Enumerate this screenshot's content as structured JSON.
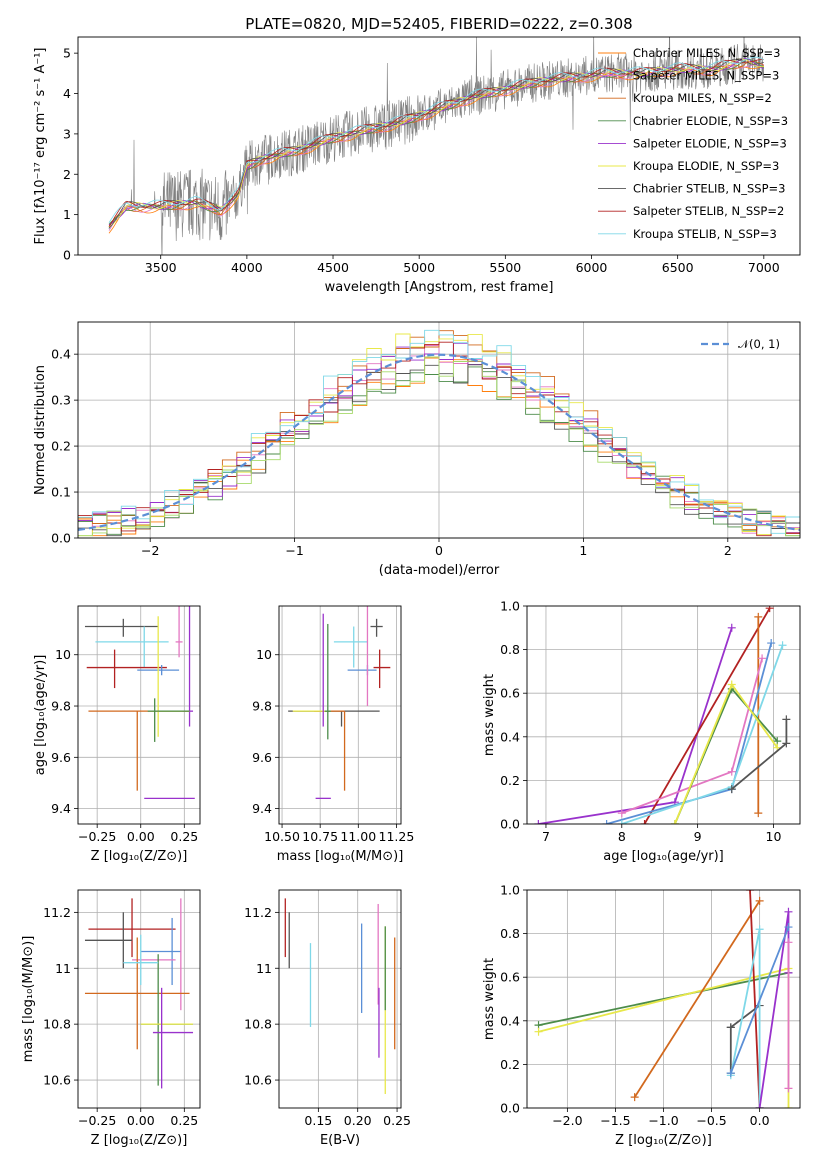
{
  "chart_data": [
    {
      "id": "spectrum",
      "type": "line",
      "title": "PLATE=0820, MJD=52405, FIBERID=0222, z=0.308",
      "xlabel": "wavelength [Angstrom, rest frame]",
      "ylabel": "Flux [fλ10⁻¹⁷ erg cm⁻² s⁻¹ A⁻¹]",
      "xlim": [
        3020,
        7210
      ],
      "ylim": [
        0,
        5.4
      ],
      "xticks": [
        3500,
        4000,
        4500,
        5000,
        5500,
        6000,
        6500,
        7000
      ],
      "yticks": [
        0,
        1,
        2,
        3,
        4,
        5
      ],
      "grid": false,
      "legend_position": "upper-right",
      "data_color": "#808080",
      "continuum": {
        "x": [
          3200,
          3300,
          3500,
          3700,
          3850,
          3950,
          4000,
          4100,
          4300,
          4500,
          4700,
          4900,
          5100,
          5300,
          5500,
          5700,
          5900,
          6100,
          6300,
          6500,
          6700,
          6900,
          7000
        ],
        "y": [
          0.7,
          1.2,
          1.2,
          1.3,
          1.1,
          1.5,
          2.2,
          2.4,
          2.6,
          2.9,
          3.1,
          3.3,
          3.6,
          3.9,
          4.1,
          4.3,
          4.4,
          4.5,
          4.5,
          4.6,
          4.6,
          4.8,
          4.7
        ]
      },
      "series": [
        {
          "name": "Chabrier MILES, N_SSP=3",
          "color": "#ff7f0e"
        },
        {
          "name": "Salpeter MILES, N_SSP=3",
          "color": "#e377c2"
        },
        {
          "name": "Kroupa MILES, N_SSP=2",
          "color": "#d2691e"
        },
        {
          "name": "Chabrier ELODIE, N_SSP=3",
          "color": "#4c8c4a"
        },
        {
          "name": "Salpeter ELODIE, N_SSP=3",
          "color": "#9932cc"
        },
        {
          "name": "Kroupa ELODIE, N_SSP=3",
          "color": "#e8e84a"
        },
        {
          "name": "Chabrier STELIB, N_SSP=3",
          "color": "#555555"
        },
        {
          "name": "Salpeter STELIB, N_SSP=2",
          "color": "#b22222"
        },
        {
          "name": "Kroupa STELIB, N_SSP=3",
          "color": "#7fd8e8"
        }
      ]
    },
    {
      "id": "residuals",
      "type": "histogram",
      "xlabel": "(data-model)/error",
      "ylabel": "Normed distribution",
      "xlim": [
        -2.5,
        2.5
      ],
      "ylim": [
        0,
        0.47
      ],
      "xticks": [
        -2,
        -1,
        0,
        1,
        2
      ],
      "yticks": [
        0.0,
        0.1,
        0.2,
        0.3,
        0.4
      ],
      "grid": true,
      "legend": "𝒩(0, 1)",
      "legend_position": "upper-right",
      "gaussian": {
        "mean": 0,
        "sigma": 1,
        "color": "#5b8fd6"
      },
      "bin_width": 0.1,
      "series_colors": [
        "#ff7f0e",
        "#e377c2",
        "#d2691e",
        "#4c8c4a",
        "#9932cc",
        "#e8e84a",
        "#555555",
        "#b22222",
        "#7fd8e8",
        "#a6d96a"
      ]
    },
    {
      "id": "age-vs-Z",
      "type": "errorbar",
      "xlabel": "Z [log₁₀(Z/Z⊙)]",
      "ylabel": "age  [log₁₀(age/yr)]",
      "xlim": [
        -0.36,
        0.34
      ],
      "ylim": [
        9.34,
        10.19
      ],
      "xticks": [
        -0.25,
        0.0,
        0.25
      ],
      "xticklabels": [
        "−0.25",
        "0.00",
        "0.25"
      ],
      "yticks": [
        9.4,
        9.6,
        9.8,
        10.0
      ],
      "grid": true,
      "points": [
        {
          "x": -0.1,
          "y": 10.11,
          "xerr": [
            0.22,
            0.2
          ],
          "yerr": [
            0.04,
            0.03
          ],
          "color": "#555555"
        },
        {
          "x": 0.02,
          "y": 10.05,
          "xerr": [
            0.28,
            0.14
          ],
          "yerr": [
            0.1,
            0.06
          ],
          "color": "#7fd8e8"
        },
        {
          "x": -0.15,
          "y": 9.95,
          "xerr": [
            0.16,
            0.3
          ],
          "yerr": [
            0.08,
            0.07
          ],
          "color": "#b22222"
        },
        {
          "x": 0.12,
          "y": 9.94,
          "xerr": [
            0.14,
            0.1
          ],
          "yerr": [
            0.02,
            0.02
          ],
          "color": "#5b8fd6"
        },
        {
          "x": 0.28,
          "y": 9.78,
          "xerr": [
            0.04,
            0.02
          ],
          "yerr": [
            0.06,
            0.42
          ],
          "color": "#9932cc"
        },
        {
          "x": -0.02,
          "y": 9.78,
          "xerr": [
            0.28,
            0.3
          ],
          "yerr": [
            0.31,
            0.0
          ],
          "color": "#d2691e"
        },
        {
          "x": 0.1,
          "y": 9.78,
          "xerr": [
            0.05,
            0.18
          ],
          "yerr": [
            0.1,
            0.37
          ],
          "color": "#e8e84a"
        },
        {
          "x": 0.08,
          "y": 9.78,
          "xerr": [
            0.04,
            0.2
          ],
          "yerr": [
            0.12,
            0.05
          ],
          "color": "#4c8c4a"
        },
        {
          "x": 0.22,
          "y": 10.05,
          "xerr": [
            0.02,
            0.02
          ],
          "yerr": [
            0.06,
            0.43
          ],
          "color": "#e377c2"
        },
        {
          "x": 0.08,
          "y": 9.44,
          "xerr": [
            0.06,
            0.23
          ],
          "yerr": [
            0.0,
            0.0
          ],
          "color": "#9932cc"
        }
      ]
    },
    {
      "id": "age-vs-mass",
      "type": "errorbar",
      "xlabel": "mass [log₁₀(M/M⊙)]",
      "ylabel": "",
      "xlim": [
        10.48,
        11.28
      ],
      "ylim": [
        9.34,
        10.19
      ],
      "xticks": [
        10.5,
        10.75,
        11.0,
        11.25
      ],
      "xticklabels": [
        "10.50",
        "10.75",
        "11.00",
        "11.25"
      ],
      "yticks": [
        9.4,
        9.6,
        9.8,
        10.0
      ],
      "grid": true,
      "points": [
        {
          "x": 11.12,
          "y": 10.11,
          "xerr": [
            0.04,
            0.04
          ],
          "yerr": [
            0.04,
            0.03
          ],
          "color": "#555555"
        },
        {
          "x": 10.97,
          "y": 10.05,
          "xerr": [
            0.13,
            0.09
          ],
          "yerr": [
            0.1,
            0.06
          ],
          "color": "#7fd8e8"
        },
        {
          "x": 11.14,
          "y": 9.95,
          "xerr": [
            0.04,
            0.07
          ],
          "yerr": [
            0.08,
            0.07
          ],
          "color": "#b22222"
        },
        {
          "x": 11.06,
          "y": 9.94,
          "xerr": [
            0.13,
            0.06
          ],
          "yerr": [
            0.02,
            0.02
          ],
          "color": "#5b8fd6"
        },
        {
          "x": 10.89,
          "y": 9.78,
          "xerr": [
            0.35,
            0.25
          ],
          "yerr": [
            0.06,
            0.0
          ],
          "color": "#555555"
        },
        {
          "x": 10.91,
          "y": 9.78,
          "xerr": [
            0.2,
            0.0
          ],
          "yerr": [
            0.31,
            0.0
          ],
          "color": "#d2691e"
        },
        {
          "x": 10.82,
          "y": 9.78,
          "xerr": [
            0.25,
            0.0
          ],
          "yerr": [
            0.0,
            0.0
          ],
          "color": "#e8e84a"
        },
        {
          "x": 10.8,
          "y": 9.78,
          "xerr": [
            0.02,
            0.02
          ],
          "yerr": [
            0.11,
            0.34
          ],
          "color": "#4c8c4a"
        },
        {
          "x": 10.77,
          "y": 9.78,
          "xerr": [
            0.0,
            0.0
          ],
          "yerr": [
            0.06,
            0.38
          ],
          "color": "#9932cc"
        },
        {
          "x": 11.06,
          "y": 9.94,
          "xerr": [
            0.0,
            0.0
          ],
          "yerr": [
            0.14,
            0.26
          ],
          "color": "#e377c2"
        },
        {
          "x": 10.77,
          "y": 9.44,
          "xerr": [
            0.05,
            0.05
          ],
          "yerr": [
            0.0,
            0.0
          ],
          "color": "#9932cc"
        }
      ]
    },
    {
      "id": "mass-weight-vs-age",
      "type": "line",
      "xlabel": "age  [log₁₀(age/yr)]",
      "ylabel": "mass weight",
      "xlim": [
        6.75,
        10.35
      ],
      "ylim": [
        0,
        1
      ],
      "xticks": [
        7,
        8,
        9,
        10
      ],
      "yticks": [
        0.0,
        0.2,
        0.4,
        0.6,
        0.8,
        1.0
      ],
      "grid": true,
      "series": [
        {
          "color": "#9932cc",
          "x": [
            6.9,
            8.7,
            9.45
          ],
          "y": [
            0.0,
            0.1,
            0.9
          ]
        },
        {
          "color": "#b22222",
          "x": [
            8.3,
            9.95
          ],
          "y": [
            0.0,
            0.99
          ]
        },
        {
          "color": "#d2691e",
          "x": [
            9.8,
            9.8
          ],
          "y": [
            0.95,
            0.05
          ]
        },
        {
          "color": "#e377c2",
          "x": [
            8.0,
            9.45,
            9.85
          ],
          "y": [
            0.05,
            0.24,
            0.76
          ]
        },
        {
          "color": "#5b8fd6",
          "x": [
            7.8,
            9.45,
            9.97
          ],
          "y": [
            0.0,
            0.16,
            0.83
          ]
        },
        {
          "color": "#7fd8e8",
          "x": [
            8.0,
            9.45,
            10.12
          ],
          "y": [
            0.0,
            0.17,
            0.82
          ]
        },
        {
          "color": "#4c8c4a",
          "x": [
            8.7,
            9.45,
            10.05
          ],
          "y": [
            0.0,
            0.62,
            0.38
          ]
        },
        {
          "color": "#e8e84a",
          "x": [
            8.7,
            9.45,
            10.05
          ],
          "y": [
            0.0,
            0.64,
            0.35
          ]
        },
        {
          "color": "#555555",
          "x": [
            9.45,
            10.17,
            10.17
          ],
          "y": [
            0.16,
            0.37,
            0.48
          ]
        }
      ]
    },
    {
      "id": "mass-vs-Z",
      "type": "errorbar",
      "xlabel": "Z [log₁₀(Z/Z⊙)]",
      "ylabel": "mass [log₁₀(M/M⊙)]",
      "xlim": [
        -0.36,
        0.34
      ],
      "ylim": [
        10.5,
        11.28
      ],
      "xticks": [
        -0.25,
        0.0,
        0.25
      ],
      "xticklabels": [
        "−0.25",
        "0.00",
        "0.25"
      ],
      "yticks": [
        10.6,
        10.8,
        11.0,
        11.2
      ],
      "grid": true,
      "points": [
        {
          "x": -0.05,
          "y": 11.14,
          "xerr": [
            0.25,
            0.25
          ],
          "yerr": [
            0.1,
            0.11
          ],
          "color": "#b22222"
        },
        {
          "x": -0.1,
          "y": 11.1,
          "xerr": [
            0.22,
            0.05
          ],
          "yerr": [
            0.1,
            0.1
          ],
          "color": "#555555"
        },
        {
          "x": 0.18,
          "y": 11.06,
          "xerr": [
            0.18,
            0.05
          ],
          "yerr": [
            0.12,
            0.12
          ],
          "color": "#5b8fd6"
        },
        {
          "x": 0.05,
          "y": 11.03,
          "xerr": [
            0.1,
            0.15
          ],
          "yerr": [
            0.0,
            0.0
          ],
          "color": "#e377c2"
        },
        {
          "x": 0.23,
          "y": 11.05,
          "xerr": [
            0.0,
            0.0
          ],
          "yerr": [
            0.2,
            0.2
          ],
          "color": "#e377c2"
        },
        {
          "x": -0.02,
          "y": 10.91,
          "xerr": [
            0.3,
            0.3
          ],
          "yerr": [
            0.2,
            0.2
          ],
          "color": "#d2691e"
        },
        {
          "x": 0.1,
          "y": 10.8,
          "xerr": [
            0.1,
            0.2
          ],
          "yerr": [
            0.22,
            0.25
          ],
          "color": "#4c8c4a"
        },
        {
          "x": 0.1,
          "y": 10.8,
          "xerr": [
            0.1,
            0.2
          ],
          "yerr": [
            0.0,
            0.0
          ],
          "color": "#e8e84a"
        },
        {
          "x": 0.12,
          "y": 10.77,
          "xerr": [
            0.05,
            0.18
          ],
          "yerr": [
            0.2,
            0.16
          ],
          "color": "#9932cc"
        },
        {
          "x": 0.0,
          "y": 11.02,
          "xerr": [
            0.1,
            0.1
          ],
          "yerr": [
            0.08,
            0.1
          ],
          "color": "#7fd8e8"
        }
      ]
    },
    {
      "id": "mass-vs-EBV",
      "type": "errorbar",
      "xlabel": "E(B-V)",
      "ylabel": "",
      "xlim": [
        0.1,
        0.255
      ],
      "ylim": [
        10.5,
        11.28
      ],
      "xticks": [
        0.15,
        0.2,
        0.25
      ],
      "xticklabels": [
        "0.15",
        "0.20",
        "0.25"
      ],
      "yticks": [
        10.6,
        10.8,
        11.0,
        11.2
      ],
      "grid": true,
      "points": [
        {
          "x": 0.108,
          "y": 11.14,
          "yerr": [
            0.1,
            0.11
          ],
          "color": "#b22222"
        },
        {
          "x": 0.113,
          "y": 11.1,
          "yerr": [
            0.1,
            0.1
          ],
          "color": "#555555"
        },
        {
          "x": 0.14,
          "y": 10.94,
          "yerr": [
            0.15,
            0.15
          ],
          "color": "#7fd8e8"
        },
        {
          "x": 0.205,
          "y": 11.0,
          "yerr": [
            0.16,
            0.16
          ],
          "color": "#5b8fd6"
        },
        {
          "x": 0.226,
          "y": 11.05,
          "yerr": [
            0.18,
            0.18
          ],
          "color": "#e377c2"
        },
        {
          "x": 0.227,
          "y": 10.81,
          "yerr": [
            0.13,
            0.12
          ],
          "color": "#9932cc"
        },
        {
          "x": 0.235,
          "y": 10.85,
          "yerr": [
            0.3,
            0.3
          ],
          "color": "#e8e84a"
        },
        {
          "x": 0.235,
          "y": 11.0,
          "yerr": [
            0.15,
            0.15
          ],
          "color": "#4c8c4a"
        },
        {
          "x": 0.247,
          "y": 10.91,
          "yerr": [
            0.2,
            0.2
          ],
          "color": "#d2691e"
        }
      ]
    },
    {
      "id": "mass-weight-vs-Z",
      "type": "line",
      "xlabel": "Z [log₁₀(Z/Z⊙)]",
      "ylabel": "mass weight",
      "xlim": [
        -2.42,
        0.42
      ],
      "ylim": [
        0,
        1
      ],
      "xticks": [
        -2.0,
        -1.5,
        -1.0,
        -0.5,
        0.0
      ],
      "xticklabels": [
        "−2.0",
        "−1.5",
        "−1.0",
        "−0.5",
        "0.0"
      ],
      "yticks": [
        0.0,
        0.2,
        0.4,
        0.6,
        0.8,
        1.0
      ],
      "grid": true,
      "series": [
        {
          "color": "#4c8c4a",
          "x": [
            -2.3,
            0.3
          ],
          "y": [
            0.38,
            0.62
          ]
        },
        {
          "color": "#e8e84a",
          "x": [
            -2.3,
            0.3,
            0.3
          ],
          "y": [
            0.35,
            0.64,
            0.0
          ]
        },
        {
          "color": "#d2691e",
          "x": [
            -1.3,
            0.0
          ],
          "y": [
            0.05,
            0.95
          ]
        },
        {
          "color": "#b22222",
          "x": [
            -0.1,
            0.0
          ],
          "y": [
            1.0,
            0.0
          ]
        },
        {
          "color": "#555555",
          "x": [
            -0.3,
            0.0,
            -0.3,
            -0.3
          ],
          "y": [
            0.37,
            0.47,
            0.37,
            0.16
          ]
        },
        {
          "color": "#7fd8e8",
          "x": [
            -0.3,
            0.0,
            0.0
          ],
          "y": [
            0.15,
            0.82,
            0.0
          ]
        },
        {
          "color": "#9932cc",
          "x": [
            0.0,
            0.3,
            0.3
          ],
          "y": [
            0.0,
            0.9,
            0.62
          ]
        },
        {
          "color": "#e377c2",
          "x": [
            0.3,
            0.3
          ],
          "y": [
            0.76,
            0.09
          ]
        },
        {
          "color": "#5b8fd6",
          "x": [
            -0.3,
            0.3
          ],
          "y": [
            0.16,
            0.83
          ]
        }
      ]
    }
  ]
}
